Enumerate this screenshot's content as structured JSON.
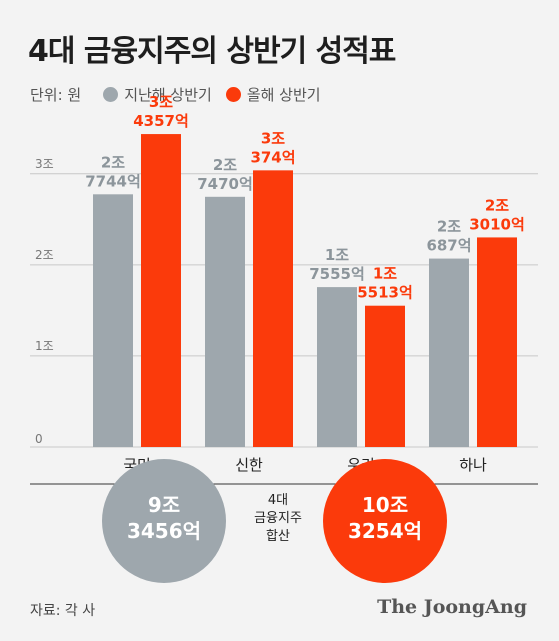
{
  "title": "4대 금융지주의 상반기 성적표",
  "legend": {
    "unit": "단위: 원",
    "items": [
      {
        "label": "지난해 상반기",
        "color": "#9ea7ad"
      },
      {
        "label": "올해 상반기",
        "color": "#fb3a0b"
      }
    ]
  },
  "chart_data": {
    "type": "bar",
    "categories": [
      "국민",
      "신한",
      "우리",
      "하나"
    ],
    "series": [
      {
        "name": "지난해 상반기",
        "color": "#9ea7ad",
        "values": [
          27744,
          27470,
          17555,
          20687
        ],
        "labels": [
          [
            "2조",
            "7744억"
          ],
          [
            "2조",
            "7470억"
          ],
          [
            "1조",
            "7555억"
          ],
          [
            "2조",
            "687억"
          ]
        ]
      },
      {
        "name": "올해 상반기",
        "color": "#fb3a0b",
        "values": [
          34357,
          30374,
          15513,
          23010
        ],
        "labels": [
          [
            "3조",
            "4357억"
          ],
          [
            "3조",
            "374억"
          ],
          [
            "1조",
            "5513억"
          ],
          [
            "2조",
            "3010억"
          ]
        ]
      }
    ],
    "y_ticks": [
      {
        "value": 0,
        "label": "0"
      },
      {
        "value": 10000,
        "label": "1조"
      },
      {
        "value": 20000,
        "label": "2조"
      },
      {
        "value": 30000,
        "label": "3조"
      }
    ],
    "ylim": [
      0,
      37000
    ],
    "grid": true
  },
  "totals": {
    "label": [
      "4대",
      "금융지주",
      "합산"
    ],
    "previous": {
      "lines": [
        "9조",
        "3456억"
      ],
      "color": "#9ea7ad"
    },
    "current": {
      "lines": [
        "10조",
        "3254억"
      ],
      "color": "#fb3a0b"
    }
  },
  "colors": {
    "grid": "#c8c8c8",
    "prev_text": "#8c959b",
    "curr_text": "#fb3a0b"
  },
  "source": "자료: 각 사",
  "brand": "The JoongAng"
}
